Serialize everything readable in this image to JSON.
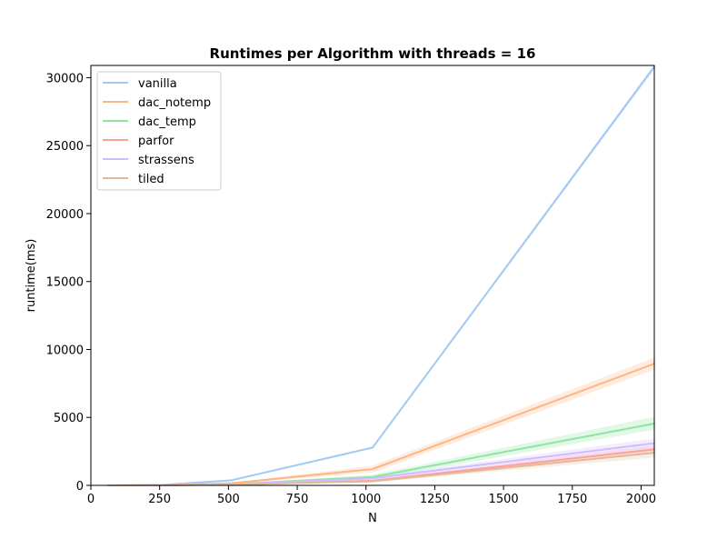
{
  "chart_data": {
    "type": "line",
    "title": "Runtimes per Algorithm with threads = 16",
    "xlabel": "N",
    "ylabel": "runtime(ms)",
    "xlim": [
      0,
      2048
    ],
    "ylim": [
      0,
      30900
    ],
    "grid": false,
    "legend_position": "top-left",
    "x": [
      64,
      256,
      512,
      1024,
      2048
    ],
    "xticks": [
      0,
      250,
      500,
      750,
      1000,
      1250,
      1500,
      1750,
      2000
    ],
    "xtick_labels": [
      "0",
      "250",
      "500",
      "750",
      "1000",
      "1250",
      "1500",
      "1750",
      "2000"
    ],
    "yticks": [
      0,
      5000,
      10000,
      15000,
      20000,
      25000,
      30000
    ],
    "ytick_labels": [
      "0",
      "5000",
      "10000",
      "15000",
      "20000",
      "25000",
      "30000"
    ],
    "series": [
      {
        "name": "vanilla",
        "color": "#a1c9f4",
        "values": [
          2,
          30,
          380,
          2780,
          30800
        ],
        "ci_low": [
          2,
          28,
          360,
          2700,
          30600
        ],
        "ci_high": [
          3,
          32,
          400,
          2860,
          31000
        ]
      },
      {
        "name": "dac_notemp",
        "color": "#ffb482",
        "values": [
          2,
          15,
          160,
          1200,
          8950
        ],
        "ci_low": [
          1,
          12,
          120,
          950,
          8500
        ],
        "ci_high": [
          3,
          20,
          200,
          1450,
          9400
        ]
      },
      {
        "name": "dac_temp",
        "color": "#8de5a1",
        "values": [
          1,
          10,
          90,
          620,
          4550
        ],
        "ci_low": [
          1,
          8,
          70,
          450,
          4100
        ],
        "ci_high": [
          2,
          13,
          110,
          790,
          5050
        ]
      },
      {
        "name": "parfor",
        "color": "#ff9f9b",
        "values": [
          1,
          8,
          60,
          340,
          2650
        ],
        "ci_low": [
          1,
          6,
          45,
          260,
          2350
        ],
        "ci_high": [
          2,
          10,
          75,
          420,
          2950
        ]
      },
      {
        "name": "strassens",
        "color": "#d0bbff",
        "values": [
          1,
          10,
          80,
          520,
          3100
        ],
        "ci_low": [
          1,
          8,
          60,
          380,
          2750
        ],
        "ci_high": [
          2,
          12,
          100,
          660,
          3450
        ]
      },
      {
        "name": "tiled",
        "color": "#debb9b",
        "values": [
          1,
          7,
          55,
          300,
          2400
        ],
        "ci_low": [
          1,
          5,
          40,
          220,
          2050
        ],
        "ci_high": [
          2,
          9,
          70,
          380,
          2750
        ]
      }
    ]
  }
}
